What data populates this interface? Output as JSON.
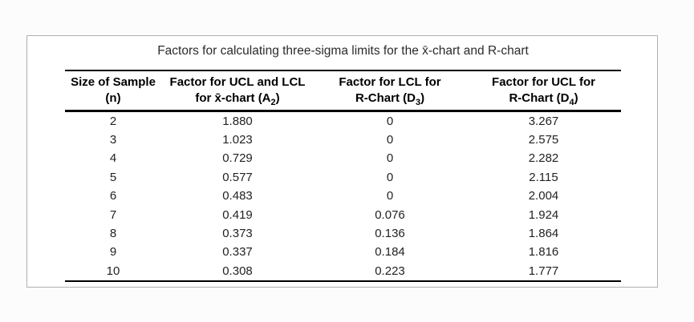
{
  "colors": {
    "page_background": "#fcfcfc",
    "panel_background": "#ffffff",
    "panel_border": "#b0b0b0",
    "rule_color": "#000000",
    "text_color": "#222222"
  },
  "title": "Factors for calculating three-sigma limits for the x̄-chart and R-chart",
  "table": {
    "columns": [
      {
        "line1": "Size of Sample",
        "line2_pre": "(n)",
        "line2_sub": "",
        "line2_post": ""
      },
      {
        "line1": "Factor for UCL and LCL",
        "line2_pre": "for x̄-chart (A",
        "line2_sub": "2",
        "line2_post": ")"
      },
      {
        "line1": "Factor for LCL for",
        "line2_pre": "R-Chart (D",
        "line2_sub": "3",
        "line2_post": ")"
      },
      {
        "line1": "Factor for UCL for",
        "line2_pre": "R-Chart (D",
        "line2_sub": "4",
        "line2_post": ")"
      }
    ],
    "rows": [
      [
        "2",
        "1.880",
        "0",
        "3.267"
      ],
      [
        "3",
        "1.023",
        "0",
        "2.575"
      ],
      [
        "4",
        "0.729",
        "0",
        "2.282"
      ],
      [
        "5",
        "0.577",
        "0",
        "2.115"
      ],
      [
        "6",
        "0.483",
        "0",
        "2.004"
      ],
      [
        "7",
        "0.419",
        "0.076",
        "1.924"
      ],
      [
        "8",
        "0.373",
        "0.136",
        "1.864"
      ],
      [
        "9",
        "0.337",
        "0.184",
        "1.816"
      ],
      [
        "10",
        "0.308",
        "0.223",
        "1.777"
      ]
    ]
  }
}
